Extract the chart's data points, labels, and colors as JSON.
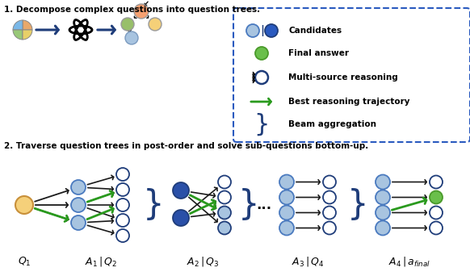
{
  "bg_color": "#ffffff",
  "light_blue": "#a8c4e0",
  "dark_blue": "#1f3d7a",
  "medium_blue": "#4a7abf",
  "green_node": "#6abf4b",
  "yellow_node": "#f5d07a",
  "orange_node": "#f5a87a",
  "peach_node": "#f5d07a",
  "green_tree": "#9abf6a",
  "arrow_black": "#1a1a1a",
  "arrow_green": "#2a9a1e",
  "legend_border": "#2a5abf",
  "text1": "1. Decompose complex questions into question trees.",
  "text2": "2. Traverse question trees in post-order and solve sub-questions bottom-up.",
  "legend_items": [
    "Candidates",
    "Final answer",
    "Multi-source reasoning",
    "Best reasoning trajectory",
    "Beam aggregation"
  ],
  "label_q1": "$Q_1$",
  "label_a1q2": "$A_1 \\,|\\, Q_2$",
  "label_a2q3": "$A_2 \\,|\\, Q_3$",
  "label_a3q4": "$A_3 \\,|\\, Q_4$",
  "label_a4af": "$A_4 \\,|\\, a_{final}$"
}
